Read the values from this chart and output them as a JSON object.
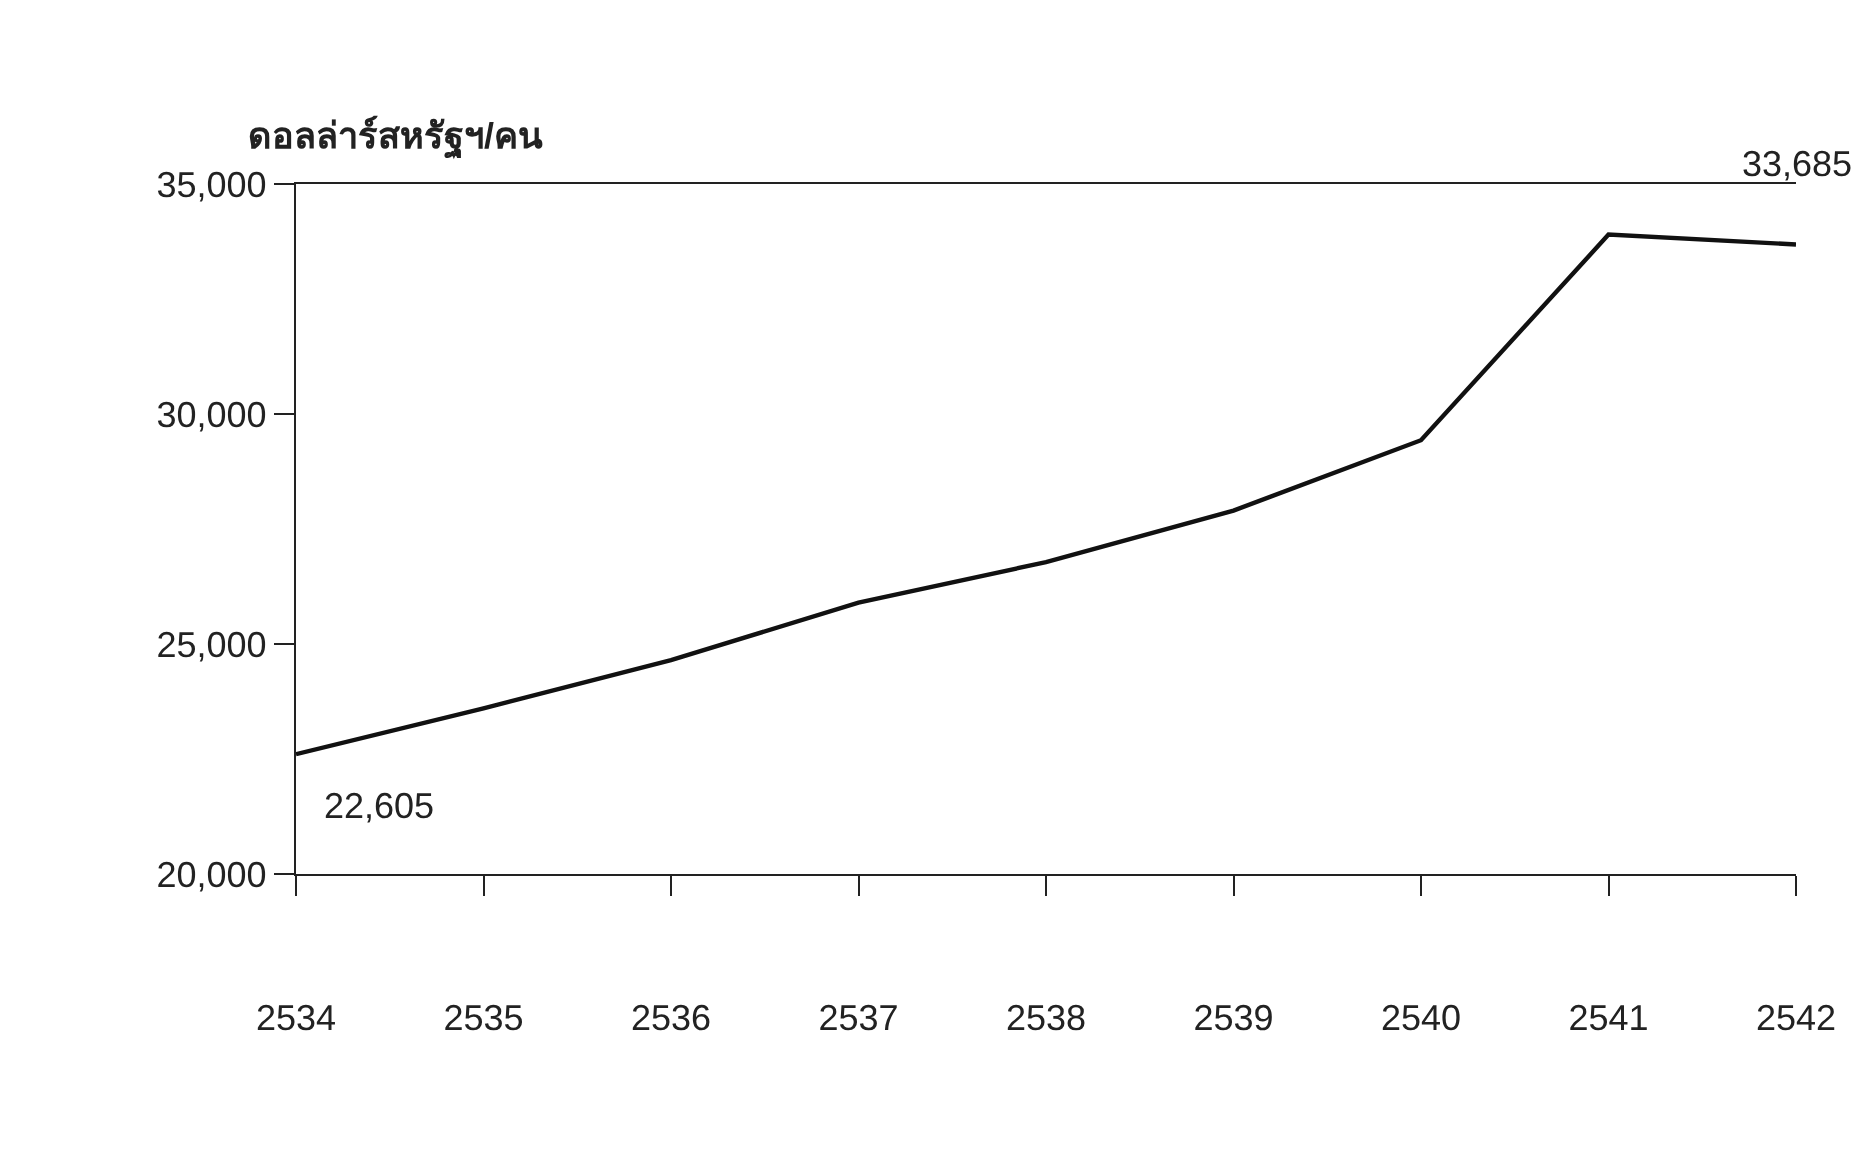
{
  "chart_data": {
    "type": "line",
    "ylabel": "ดอลล่าร์สหรัฐฯ/คน",
    "categories": [
      "2534",
      "2535",
      "2536",
      "2537",
      "2538",
      "2539",
      "2540",
      "2541",
      "2542"
    ],
    "series": [
      {
        "color": "#111111",
        "values": [
          22605,
          23600,
          24650,
          25900,
          26780,
          27900,
          29430,
          33900,
          33685
        ]
      }
    ],
    "ylim": [
      20000,
      35000
    ],
    "yticks": [
      {
        "value": 20000,
        "label": "20,000"
      },
      {
        "value": 25000,
        "label": "25,000"
      },
      {
        "value": 30000,
        "label": "30,000"
      },
      {
        "value": 35000,
        "label": "35,000"
      }
    ],
    "annotations": [
      {
        "text": "22,605",
        "x": "2534",
        "y": 22605
      },
      {
        "text": "33,685",
        "x": "2542",
        "y": 33685
      }
    ],
    "legend": false,
    "marker": "none",
    "line_style": "solid"
  }
}
